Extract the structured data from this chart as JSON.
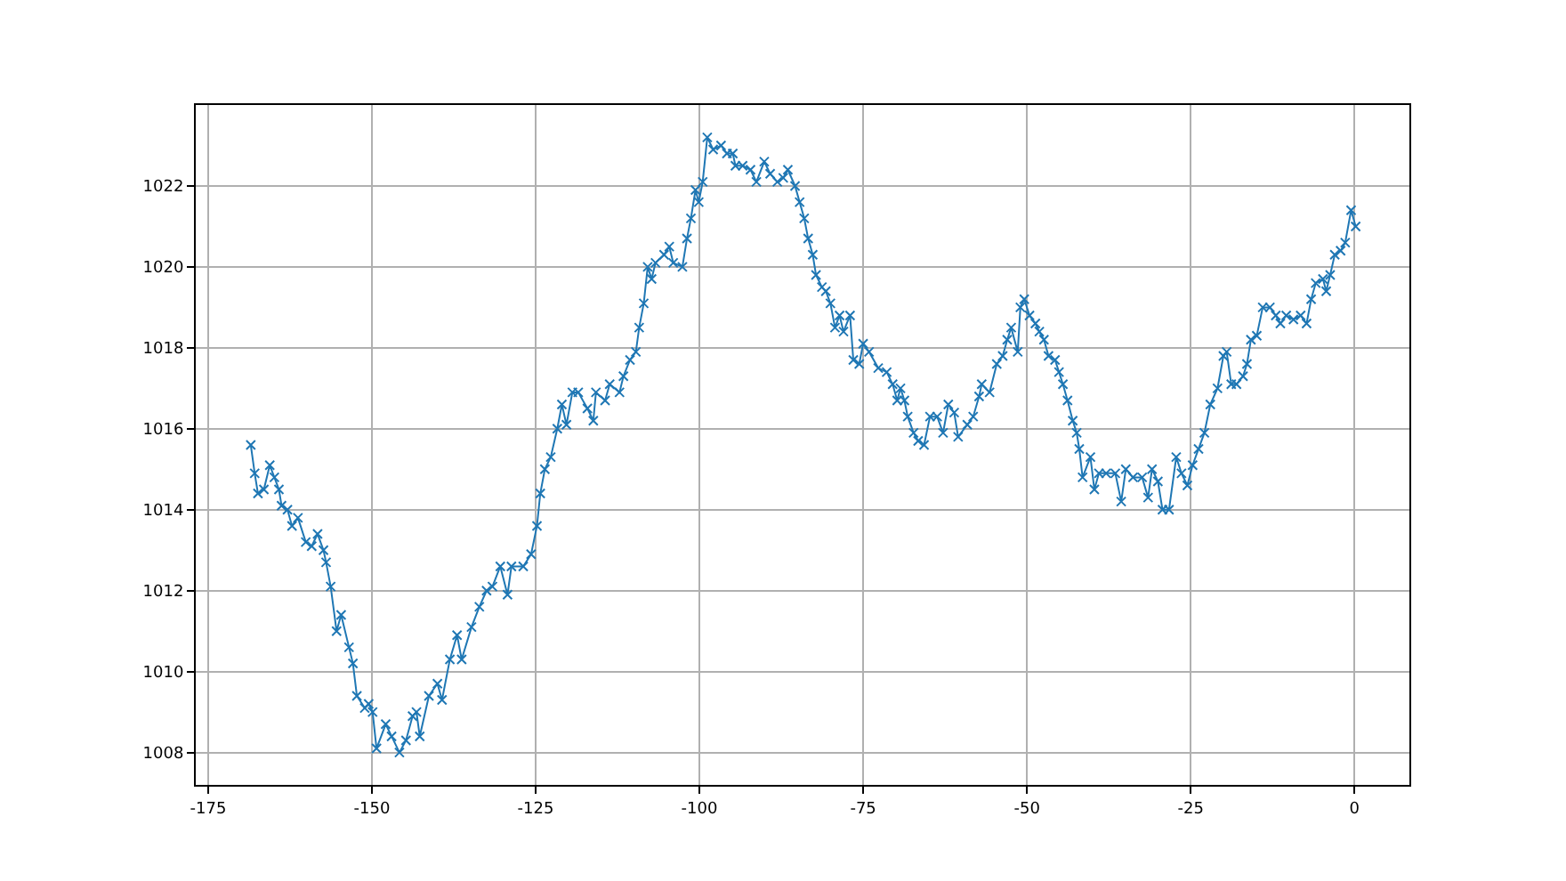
{
  "chart_data": {
    "type": "line",
    "marker": "cross",
    "line_style": "solid",
    "grid": true,
    "xlim": [
      -176.9,
      8.4
    ],
    "ylim": [
      1007.2,
      1024.0
    ],
    "xticks": [
      -175,
      -150,
      -125,
      -100,
      -75,
      -50,
      -25,
      0
    ],
    "yticks": [
      1008,
      1010,
      1012,
      1014,
      1016,
      1018,
      1020,
      1022
    ],
    "x": [
      -168.5,
      -167.9,
      -167.4,
      -166.5,
      -165.6,
      -164.9,
      -164.2,
      -163.8,
      -162.9,
      -162.2,
      -161.3,
      -160.1,
      -159.2,
      -158.3,
      -157.4,
      -157.0,
      -156.3,
      -155.4,
      -154.7,
      -153.5,
      -152.9,
      -152.3,
      -151.1,
      -150.5,
      -149.9,
      -149.3,
      -147.9,
      -147.0,
      -145.8,
      -144.8,
      -143.8,
      -143.2,
      -142.7,
      -141.3,
      -140.0,
      -139.3,
      -138.1,
      -137.0,
      -136.3,
      -134.8,
      -133.6,
      -132.5,
      -131.6,
      -130.4,
      -129.3,
      -128.7,
      -126.9,
      -125.7,
      -124.8,
      -124.3,
      -123.6,
      -122.7,
      -121.7,
      -121.0,
      -120.3,
      -119.4,
      -118.5,
      -117.1,
      -116.2,
      -115.8,
      -114.4,
      -113.7,
      -112.2,
      -111.6,
      -110.6,
      -109.7,
      -109.2,
      -108.5,
      -107.9,
      -107.3,
      -106.7,
      -105.4,
      -104.6,
      -104.0,
      -102.6,
      -101.9,
      -101.3,
      -100.6,
      -100.1,
      -99.5,
      -98.8,
      -97.9,
      -96.7,
      -95.8,
      -94.9,
      -94.5,
      -93.4,
      -92.2,
      -91.3,
      -90.1,
      -89.2,
      -88.1,
      -87.2,
      -86.5,
      -85.4,
      -84.7,
      -84.0,
      -83.4,
      -82.7,
      -82.2,
      -81.3,
      -80.7,
      -80.0,
      -79.3,
      -78.6,
      -78.0,
      -77.0,
      -76.5,
      -75.6,
      -75.0,
      -74.1,
      -72.7,
      -71.4,
      -70.5,
      -69.8,
      -69.3,
      -68.7,
      -68.2,
      -67.3,
      -66.6,
      -65.7,
      -64.8,
      -63.7,
      -62.8,
      -62.0,
      -61.1,
      -60.5,
      -59.1,
      -58.2,
      -57.3,
      -56.9,
      -55.7,
      -54.6,
      -53.7,
      -53.0,
      -52.4,
      -51.4,
      -51.0,
      -50.4,
      -49.6,
      -48.7,
      -48.1,
      -47.4,
      -46.7,
      -45.7,
      -45.1,
      -44.5,
      -43.8,
      -43.0,
      -42.4,
      -42.0,
      -41.5,
      -40.3,
      -39.7,
      -39.0,
      -37.9,
      -36.5,
      -35.6,
      -34.9,
      -33.8,
      -32.4,
      -31.5,
      -30.9,
      -30.0,
      -29.3,
      -28.3,
      -27.2,
      -26.4,
      -25.5,
      -24.7,
      -23.8,
      -22.9,
      -22.0,
      -20.9,
      -20.0,
      -19.5,
      -18.8,
      -18.0,
      -17.0,
      -16.4,
      -15.8,
      -14.9,
      -14.0,
      -12.9,
      -12.0,
      -11.3,
      -10.4,
      -9.3,
      -8.2,
      -7.3,
      -6.6,
      -5.9,
      -4.8,
      -4.3,
      -3.7,
      -3.0,
      -2.1,
      -1.4,
      -0.5,
      0.2
    ],
    "series": [
      {
        "color": "#1f77b4",
        "values": [
          1015.6,
          1014.9,
          1014.4,
          1014.5,
          1015.1,
          1014.8,
          1014.5,
          1014.1,
          1014.0,
          1013.6,
          1013.8,
          1013.2,
          1013.1,
          1013.4,
          1013.0,
          1012.7,
          1012.1,
          1011.0,
          1011.4,
          1010.6,
          1010.2,
          1009.4,
          1009.1,
          1009.2,
          1009.0,
          1008.1,
          1008.7,
          1008.4,
          1008.0,
          1008.3,
          1008.9,
          1009.0,
          1008.4,
          1009.4,
          1009.7,
          1009.3,
          1010.3,
          1010.9,
          1010.3,
          1011.1,
          1011.6,
          1012.0,
          1012.1,
          1012.6,
          1011.9,
          1012.6,
          1012.6,
          1012.9,
          1013.6,
          1014.4,
          1015.0,
          1015.3,
          1016.0,
          1016.6,
          1016.1,
          1016.9,
          1016.9,
          1016.5,
          1016.2,
          1016.9,
          1016.7,
          1017.1,
          1016.9,
          1017.3,
          1017.7,
          1017.9,
          1018.5,
          1019.1,
          1020.0,
          1019.7,
          1020.1,
          1020.3,
          1020.5,
          1020.1,
          1020.0,
          1020.7,
          1021.2,
          1021.9,
          1021.6,
          1022.1,
          1023.2,
          1022.9,
          1023.0,
          1022.8,
          1022.8,
          1022.5,
          1022.5,
          1022.4,
          1022.1,
          1022.6,
          1022.3,
          1022.1,
          1022.2,
          1022.4,
          1022.0,
          1021.6,
          1021.2,
          1020.7,
          1020.3,
          1019.8,
          1019.5,
          1019.4,
          1019.1,
          1018.5,
          1018.8,
          1018.4,
          1018.8,
          1017.7,
          1017.6,
          1018.1,
          1017.9,
          1017.5,
          1017.4,
          1017.1,
          1016.7,
          1017.0,
          1016.7,
          1016.3,
          1015.9,
          1015.7,
          1015.6,
          1016.3,
          1016.3,
          1015.9,
          1016.6,
          1016.4,
          1015.8,
          1016.1,
          1016.3,
          1016.8,
          1017.1,
          1016.9,
          1017.6,
          1017.8,
          1018.2,
          1018.5,
          1017.9,
          1019.0,
          1019.2,
          1018.8,
          1018.6,
          1018.4,
          1018.2,
          1017.8,
          1017.7,
          1017.4,
          1017.1,
          1016.7,
          1016.2,
          1015.9,
          1015.5,
          1014.8,
          1015.3,
          1014.5,
          1014.9,
          1014.9,
          1014.9,
          1014.2,
          1015.0,
          1014.8,
          1014.8,
          1014.3,
          1015.0,
          1014.7,
          1014.0,
          1014.0,
          1015.3,
          1014.9,
          1014.6,
          1015.1,
          1015.5,
          1015.9,
          1016.6,
          1017.0,
          1017.8,
          1017.9,
          1017.1,
          1017.1,
          1017.3,
          1017.6,
          1018.2,
          1018.3,
          1019.0,
          1019.0,
          1018.8,
          1018.6,
          1018.8,
          1018.7,
          1018.8,
          1018.6,
          1019.2,
          1019.6,
          1019.7,
          1019.4,
          1019.8,
          1020.3,
          1020.4,
          1020.6,
          1021.4,
          1021.0
        ]
      }
    ]
  }
}
